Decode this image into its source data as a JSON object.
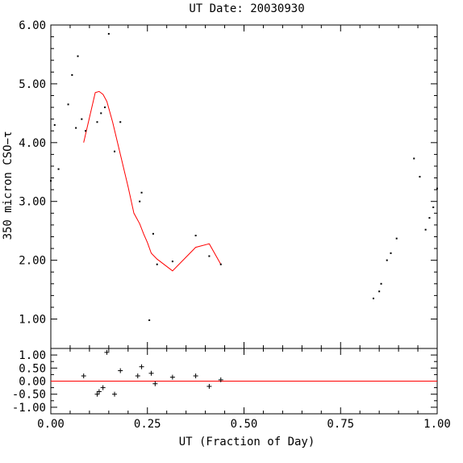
{
  "chart_data": [
    {
      "type": "scatter",
      "title": "UT Date: 20030930",
      "xlabel": "",
      "ylabel": "350 micron CSO−τ",
      "xlim": [
        0,
        1
      ],
      "ylim": [
        0.5,
        6.0
      ],
      "yticks": [
        "1.00",
        "2.00",
        "3.00",
        "4.00",
        "5.00",
        "6.00"
      ],
      "yticks_values": [
        1,
        2,
        3,
        4,
        5,
        6
      ],
      "series": [
        {
          "style": "points",
          "color": "#000000",
          "x": [
            0.0,
            0.01,
            0.02,
            0.045,
            0.055,
            0.065,
            0.07,
            0.08,
            0.09,
            0.12,
            0.13,
            0.14,
            0.15,
            0.165,
            0.18,
            0.23,
            0.235,
            0.255,
            0.265,
            0.275,
            0.315,
            0.375,
            0.41,
            0.44,
            0.835,
            0.85,
            0.855,
            0.87,
            0.88,
            0.895,
            0.94,
            0.955,
            0.97,
            0.98,
            0.99,
            1.0
          ],
          "y": [
            3.35,
            4.3,
            3.55,
            4.65,
            5.15,
            4.25,
            5.47,
            4.4,
            4.2,
            4.35,
            4.5,
            4.6,
            5.85,
            3.85,
            4.35,
            3.0,
            3.15,
            0.98,
            2.45,
            1.93,
            1.98,
            2.42,
            2.07,
            1.93,
            1.35,
            1.47,
            1.6,
            2.0,
            2.12,
            2.37,
            3.73,
            3.42,
            2.52,
            2.72,
            2.9,
            3.22
          ]
        },
        {
          "style": "line",
          "color": "#ff0000",
          "x": [
            0.085,
            0.115,
            0.125,
            0.135,
            0.145,
            0.16,
            0.18,
            0.2,
            0.215,
            0.23,
            0.24,
            0.25,
            0.26,
            0.275,
            0.315,
            0.375,
            0.41,
            0.44
          ],
          "y": [
            4.0,
            4.85,
            4.87,
            4.82,
            4.7,
            4.35,
            3.8,
            3.25,
            2.8,
            2.62,
            2.45,
            2.3,
            2.12,
            2.02,
            1.82,
            2.22,
            2.28,
            1.93
          ]
        }
      ]
    },
    {
      "type": "scatter",
      "title": "",
      "xlabel": "UT (Fraction of Day)",
      "ylabel": "",
      "xlim": [
        0,
        1
      ],
      "ylim": [
        -1.25,
        1.25
      ],
      "xticks": [
        "0.00",
        "0.25",
        "0.50",
        "0.75",
        "1.00"
      ],
      "xticks_values": [
        0,
        0.25,
        0.5,
        0.75,
        1.0
      ],
      "yticks": [
        "-1.00",
        "-0.50",
        "0.00",
        "0.50",
        "1.00"
      ],
      "yticks_values": [
        -1,
        -0.5,
        0,
        0.5,
        1
      ],
      "zero_line_color": "#ff0000",
      "series": [
        {
          "style": "plus",
          "color": "#000000",
          "x": [
            0.085,
            0.12,
            0.125,
            0.135,
            0.145,
            0.165,
            0.18,
            0.225,
            0.235,
            0.26,
            0.27,
            0.315,
            0.375,
            0.41,
            0.44
          ],
          "y": [
            0.2,
            -0.5,
            -0.4,
            -0.25,
            1.1,
            -0.5,
            0.4,
            0.2,
            0.55,
            0.3,
            -0.1,
            0.15,
            0.2,
            -0.2,
            0.05
          ]
        }
      ]
    }
  ]
}
